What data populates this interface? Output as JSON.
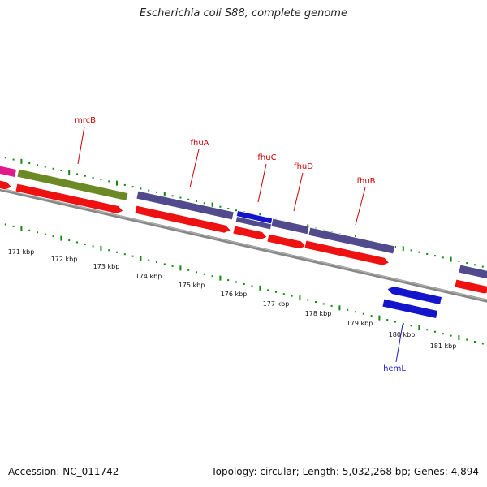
{
  "title": "Escherichia coli S88, complete genome",
  "footer": {
    "accession": "Accession: NC_011742",
    "topology": "Topology: circular; Length: 5,032,268 bp; Genes: 4,894"
  },
  "colors": {
    "cds": "#ee1111",
    "gene_purple": "#514a8c",
    "gene_olive": "#6b8a25",
    "gene_magenta": "#e0198c",
    "gene_blue": "#1414cc",
    "backbone": "#888888",
    "ticks": "#118811",
    "label_red": "#cc0000",
    "label_blue": "#1a1acc"
  },
  "tick_labels": [
    "171 kbp",
    "172 kbp",
    "173 kbp",
    "174 kbp",
    "175 kbp",
    "176 kbp",
    "177 kbp",
    "178 kbp",
    "179 kbp",
    "180 kbp",
    "181 kbp"
  ],
  "gene_labels": [
    {
      "name": "mrcB",
      "color": "red"
    },
    {
      "name": "fhuA",
      "color": "red"
    },
    {
      "name": "fhuC",
      "color": "red"
    },
    {
      "name": "fhuD",
      "color": "red"
    },
    {
      "name": "fhuB",
      "color": "red"
    },
    {
      "name": "hemL",
      "color": "blue"
    }
  ]
}
